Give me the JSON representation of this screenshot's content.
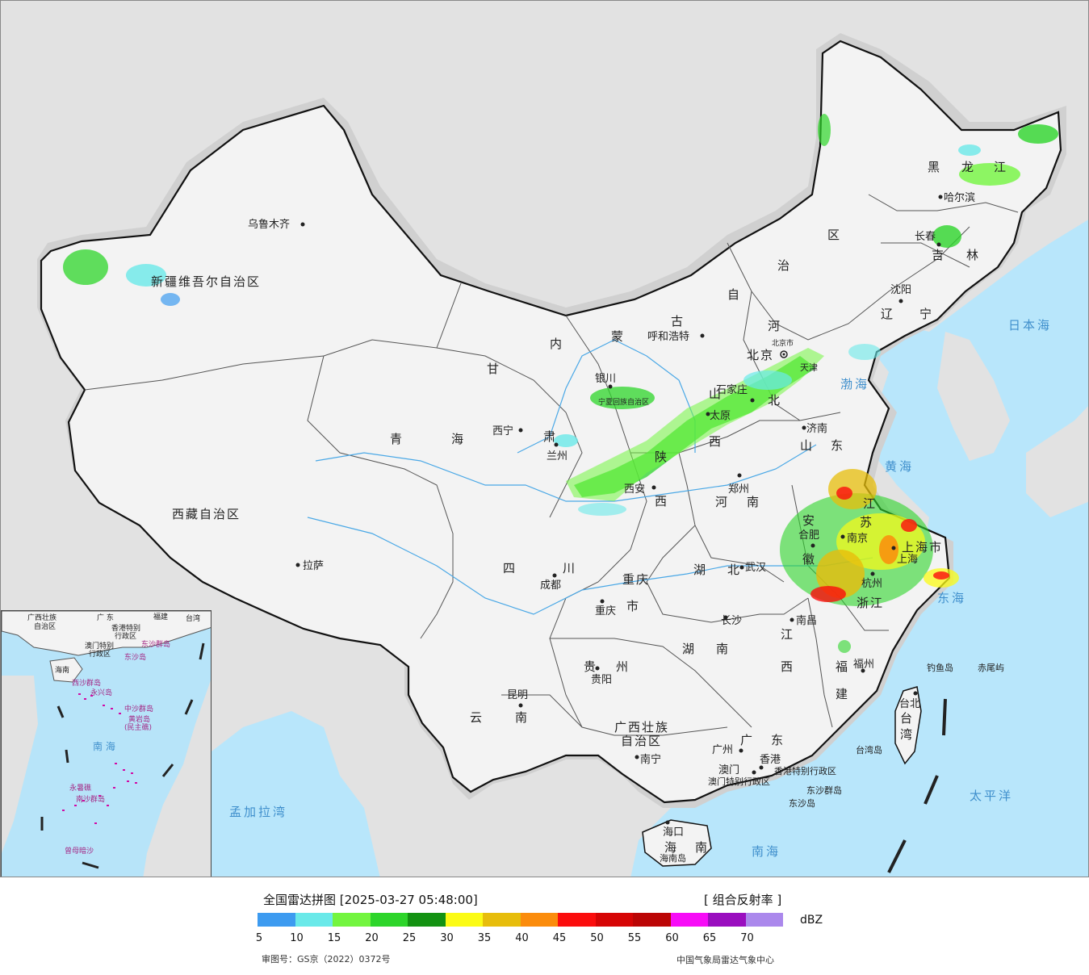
{
  "legend": {
    "title": "全国雷达拼图 [2025-03-27 05:48:00]",
    "product": "[ 组合反射率 ]",
    "unit": "dBZ",
    "colors": [
      "#3d9bf0",
      "#6ae9e9",
      "#73f53f",
      "#2dd52a",
      "#139212",
      "#fbfb15",
      "#e7bd0b",
      "#fb8c0c",
      "#fb0d0d",
      "#d60505",
      "#bb0505",
      "#f70cf7",
      "#9a0ebf",
      "#ab88ec"
    ],
    "ticks": [
      "5",
      "10",
      "15",
      "20",
      "25",
      "30",
      "35",
      "40",
      "45",
      "50",
      "55",
      "60",
      "65",
      "70"
    ],
    "approval": "审图号：GS京（2022）0372号",
    "credit": "中国气象局雷达气象中心"
  },
  "map": {
    "provinces": {
      "xinjiang": "新疆维吾尔自治区",
      "xizang": "西藏自治区",
      "qinghai_1": "青",
      "qinghai_2": "海",
      "gansu": "甘",
      "neimenggu_1": "内",
      "neimenggu_2": "蒙",
      "neimenggu_3": "古",
      "neimenggu_4": "自",
      "neimenggu_5": "治",
      "neimenggu_6": "区",
      "heilongjiang_1": "黑",
      "heilongjiang_2": "龙",
      "heilongjiang_3": "江",
      "jilin_1": "吉",
      "jilin_2": "林",
      "liaoning_1": "辽",
      "liaoning_2": "宁",
      "hebei_1": "河",
      "hebei_2": "北",
      "shandong_1": "山",
      "shandong_2": "东",
      "shanxi_1": "山",
      "shanxi_2": "西",
      "shaanxi_1": "陕",
      "shaanxi_2": "西",
      "henan_1": "河",
      "henan_2": "南",
      "sichuan_1": "四",
      "sichuan_2": "川",
      "hubei_1": "湖",
      "hubei_2": "北",
      "hunan_1": "湖",
      "hunan_2": "南",
      "jiangxi_1": "江",
      "jiangxi_2": "西",
      "anhui_1": "安",
      "anhui_2": "徽",
      "jiangsu_1": "江",
      "jiangsu_2": "苏",
      "zhejiang": "浙江",
      "fujian_1": "福",
      "fujian_2": "建",
      "guizhou_1": "贵",
      "guizhou_2": "州",
      "yunnan_1": "云",
      "yunnan_2": "南",
      "guangxi_1": "广西壮族",
      "guangxi_2": "自治区",
      "guangdong_1": "广",
      "guangdong_2": "东",
      "hainan_1": "海",
      "hainan_2": "南",
      "chongqing_1": "重庆",
      "chongqing_2": "市",
      "shanghai": "上海市",
      "ningxia": "宁夏回族自治区",
      "tianjin": "天津",
      "beijing": "北京市",
      "taiwan_1": "台",
      "taiwan_2": "湾",
      "hk": "香港特别行政区",
      "macau": "澳门特别行政区",
      "gansu_2": "肃"
    },
    "cities": {
      "urumqi": "乌鲁木齐",
      "lhasa": "拉萨",
      "xining": "西宁",
      "lanzhou": "兰州",
      "yinchuan": "银川",
      "hohhot": "呼和浩特",
      "beijing": "北京",
      "shijiazhuang": "石家庄",
      "taiyuan": "太原",
      "jinan": "济南",
      "zhengzhou": "郑州",
      "xian": "西安",
      "chengdu": "成都",
      "chongqing": "重庆",
      "wuhan": "武汉",
      "hefei": "合肥",
      "nanjing": "南京",
      "shanghai": "上海",
      "hangzhou": "杭州",
      "nanchang": "南昌",
      "changsha": "长沙",
      "guiyang": "贵阳",
      "kunming": "昆明",
      "nanning": "南宁",
      "guangzhou": "广州",
      "macau": "澳门",
      "hongkong": "香港",
      "haikou": "海口",
      "fuzhou": "福州",
      "taibei": "台北",
      "shenyang": "沈阳",
      "changchun": "长春",
      "harbin": "哈尔滨"
    },
    "seas": {
      "bohai": "渤海",
      "huanghai": "黄海",
      "donghai": "东海",
      "nanhai": "南海",
      "japan_sea": "日本海",
      "pacific": "太平洋",
      "bengal": "孟加拉湾"
    },
    "islands": {
      "diaoyu": "钓鱼岛",
      "chiwei": "赤尾屿",
      "dongsha_qundao": "东沙群岛",
      "dongsha_dao": "东沙岛",
      "taiwan_dao": "台湾岛",
      "hainan_dao": "海南岛"
    }
  },
  "inset": {
    "labels": {
      "guangxi": "广西壮族",
      "guangxi_2": "自治区",
      "guangdong": "广  东",
      "fujian": "福建",
      "taiwan": "台湾",
      "hk": "香港特别",
      "hk_2": "行政区",
      "macau": "澳门特别",
      "macau_2": "行政区",
      "dongsha": "东沙群岛",
      "dongsha_dao": "东沙岛",
      "hainan": "海南",
      "xisha": "西沙群岛",
      "yongxing": "永兴岛",
      "zhongsha": "中沙群岛",
      "huangyan": "黄岩岛",
      "huangyan_2": "(民主礁)",
      "nanhai": "南  海",
      "nansha": "南沙群岛",
      "yongshu": "永暑礁",
      "zengmu": "曾母暗沙"
    }
  }
}
